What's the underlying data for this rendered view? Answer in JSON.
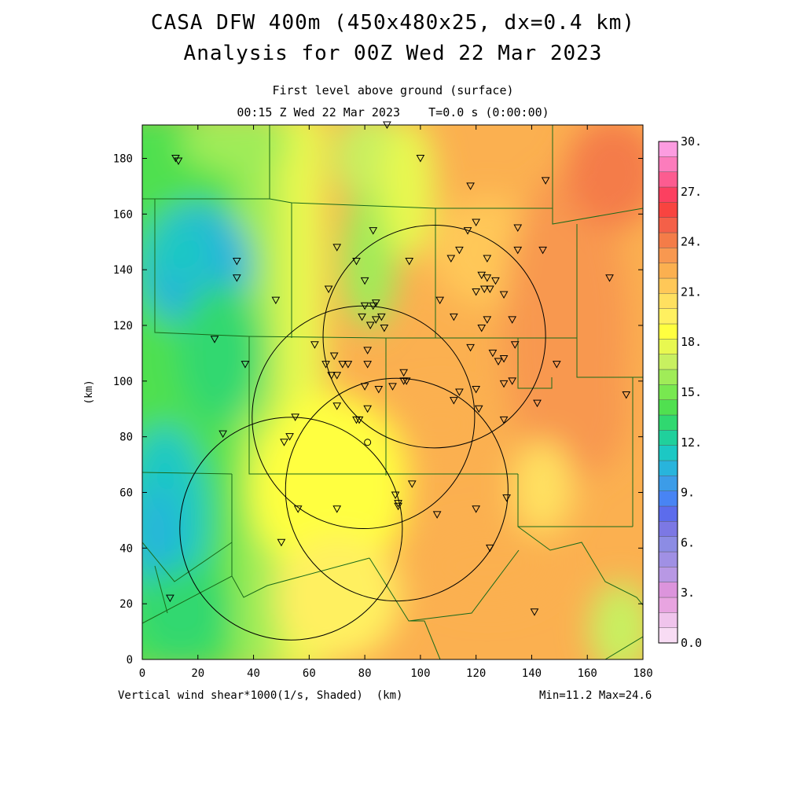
{
  "title": {
    "line1": "CASA DFW 400m (450x480x25, dx=0.4 km)",
    "line2": "Analysis for 00Z Wed 22 Mar 2023"
  },
  "subtitle": {
    "line1": "First level above ground (surface)",
    "line2": "00:15 Z Wed 22 Mar 2023    T=0.0 s (0:00:00)"
  },
  "footer": {
    "field_label": "Vertical wind shear*1000(1/s, Shaded)  (km)",
    "minmax": "Min=11.2 Max=24.6"
  },
  "chart_data": {
    "type": "heatmap",
    "xlabel": "",
    "ylabel": "(km)",
    "xlim": [
      0,
      180
    ],
    "ylim": [
      0,
      192
    ],
    "x_ticks": [
      0,
      20,
      40,
      60,
      80,
      100,
      120,
      140,
      160,
      180
    ],
    "y_ticks": [
      0,
      20,
      40,
      60,
      80,
      100,
      120,
      140,
      160,
      180
    ],
    "colorbar": {
      "range": [
        0,
        30
      ],
      "tick_labels": [
        "0.0",
        "3.",
        "6.",
        "9.",
        "12.",
        "15.",
        "18.",
        "21.",
        "24.",
        "27.",
        "30."
      ],
      "colors": [
        "#f8dcf4",
        "#f0c4ec",
        "#e8a4e0",
        "#dc94dc",
        "#b898e4",
        "#a090e4",
        "#8c8ce4",
        "#7c78e4",
        "#5c6cec",
        "#4884f4",
        "#3c9ce8",
        "#28b4dc",
        "#1cc8c4",
        "#20d09c",
        "#30d870",
        "#50e050",
        "#78e850",
        "#a0ec58",
        "#c8f060",
        "#e8f850",
        "#ffff40",
        "#fff060",
        "#ffe060",
        "#ffc858",
        "#fbb050",
        "#f89850",
        "#f47c48",
        "#f46048",
        "#f84440",
        "#fc4060",
        "#fc5c90",
        "#fc7cbc",
        "#fc9ce0"
      ]
    },
    "field_range": {
      "min": 11.2,
      "max": 24.6
    },
    "radar_circles": [
      {
        "cx": 105,
        "cy": 116,
        "r": 40
      },
      {
        "cx": 79.5,
        "cy": 87,
        "r": 40
      },
      {
        "cx": 91.5,
        "cy": 61,
        "r": 40
      },
      {
        "cx": 53.5,
        "cy": 47,
        "r": 40
      }
    ],
    "stations": [
      [
        12,
        180
      ],
      [
        13,
        179
      ],
      [
        100,
        180
      ],
      [
        88,
        192
      ],
      [
        118,
        170
      ],
      [
        145,
        172
      ],
      [
        83,
        154
      ],
      [
        120,
        157
      ],
      [
        135,
        155
      ],
      [
        117,
        154
      ],
      [
        70,
        148
      ],
      [
        114,
        147
      ],
      [
        77,
        143
      ],
      [
        96,
        143
      ],
      [
        34,
        143
      ],
      [
        34,
        137
      ],
      [
        67,
        133
      ],
      [
        80,
        136
      ],
      [
        124,
        144
      ],
      [
        135,
        147
      ],
      [
        144,
        147
      ],
      [
        168,
        137
      ],
      [
        111,
        144
      ],
      [
        122,
        138
      ],
      [
        124,
        137
      ],
      [
        127,
        136
      ],
      [
        120,
        132
      ],
      [
        123,
        133
      ],
      [
        125,
        133
      ],
      [
        130,
        131
      ],
      [
        107,
        129
      ],
      [
        48,
        129
      ],
      [
        84,
        128
      ],
      [
        80,
        127
      ],
      [
        83,
        127
      ],
      [
        79,
        123
      ],
      [
        86,
        123
      ],
      [
        82,
        120
      ],
      [
        84,
        122
      ],
      [
        87,
        119
      ],
      [
        112,
        123
      ],
      [
        122,
        119
      ],
      [
        124,
        122
      ],
      [
        133,
        122
      ],
      [
        26,
        115
      ],
      [
        62,
        113
      ],
      [
        81,
        111
      ],
      [
        118,
        112
      ],
      [
        126,
        110
      ],
      [
        128,
        107
      ],
      [
        130,
        108
      ],
      [
        134,
        113
      ],
      [
        37,
        106
      ],
      [
        66,
        106
      ],
      [
        69,
        109
      ],
      [
        72,
        106
      ],
      [
        74,
        106
      ],
      [
        81,
        106
      ],
      [
        94,
        103
      ],
      [
        94,
        100
      ],
      [
        95,
        100
      ],
      [
        149,
        106
      ],
      [
        68,
        102
      ],
      [
        70,
        102
      ],
      [
        90,
        98
      ],
      [
        80,
        98
      ],
      [
        85,
        97
      ],
      [
        114,
        96
      ],
      [
        120,
        97
      ],
      [
        130,
        99
      ],
      [
        133,
        100
      ],
      [
        142,
        92
      ],
      [
        174,
        95
      ],
      [
        70,
        91
      ],
      [
        81,
        90
      ],
      [
        112,
        93
      ],
      [
        121,
        90
      ],
      [
        78,
        86
      ],
      [
        77,
        86
      ],
      [
        130,
        86
      ],
      [
        29,
        81
      ],
      [
        55,
        87
      ],
      [
        53,
        80
      ],
      [
        51,
        78
      ],
      [
        97,
        63
      ],
      [
        91,
        59
      ],
      [
        92,
        56
      ],
      [
        92,
        55
      ],
      [
        120,
        54
      ],
      [
        56,
        54
      ],
      [
        70,
        54
      ],
      [
        106,
        52
      ],
      [
        131,
        58
      ],
      [
        50,
        42
      ],
      [
        125,
        40
      ],
      [
        141,
        17
      ],
      [
        10,
        22
      ]
    ],
    "circle_station": [
      81,
      78
    ]
  }
}
